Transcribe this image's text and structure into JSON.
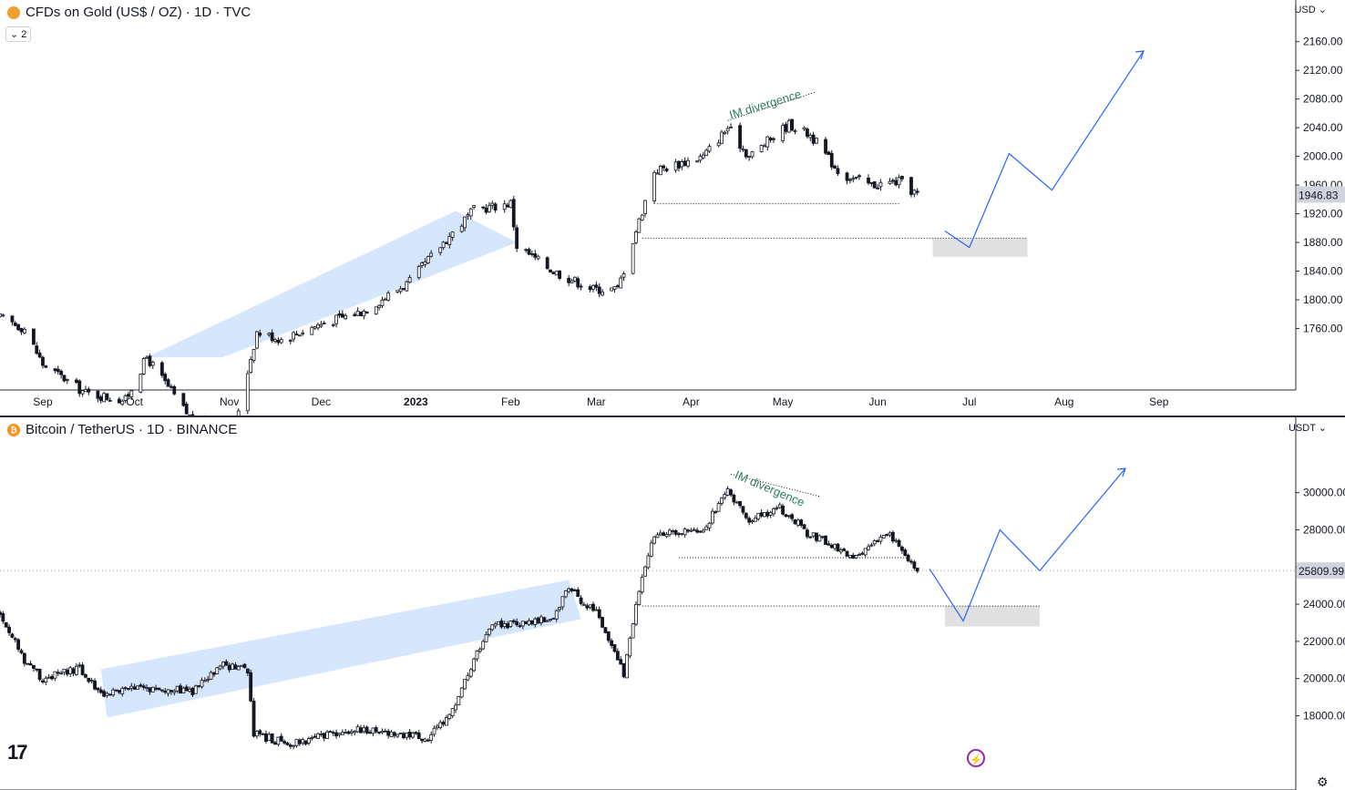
{
  "top_panel": {
    "title": "CFDs on Gold (US$ / OZ) · 1D · TVC",
    "collapse_label": "⌄ 2",
    "currency": "USD",
    "annotation": "IM divergence"
  },
  "bottom_panel": {
    "title": "Bitcoin / TetherUS · 1D · BINANCE",
    "currency": "USDT",
    "annotation": "IM divergence"
  },
  "colors": {
    "candle": "#131722",
    "channel": "#cfe2fb",
    "projection": "#2962ff",
    "annotation": "#2e7d62",
    "zone": "#e0e0e0"
  },
  "chart_data": [
    {
      "type": "candlestick",
      "title": "CFDs on Gold (US$ / OZ) · 1D · TVC",
      "x_ticks": [
        "Sep",
        "Oct",
        "Nov",
        "Dec",
        "2023",
        "Feb",
        "Mar",
        "Apr",
        "May",
        "Jun",
        "Jul",
        "Aug",
        "Sep"
      ],
      "y_ticks": [
        "2160.00",
        "2120.00",
        "2080.00",
        "2040.00",
        "2000.00",
        "1960.00",
        "1920.00",
        "1880.00",
        "1840.00",
        "1800.00",
        "1760.00"
      ],
      "ylim": [
        1720,
        2180
      ],
      "last_price": "1946.83",
      "support_levels": [
        1934,
        1886
      ],
      "target_zone": [
        1860,
        1886
      ],
      "projection_path": [
        1896,
        1873,
        2004,
        1953,
        2147
      ],
      "close_points": [
        [
          "2022-08-18",
          1775
        ],
        [
          "2022-08-26",
          1760
        ],
        [
          "2022-09-01",
          1710
        ],
        [
          "2022-09-15",
          1670
        ],
        [
          "2022-09-28",
          1660
        ],
        [
          "2022-10-05",
          1720
        ],
        [
          "2022-10-20",
          1630
        ],
        [
          "2022-11-03",
          1630
        ],
        [
          "2022-11-10",
          1755
        ],
        [
          "2022-11-18",
          1745
        ],
        [
          "2022-11-30",
          1765
        ],
        [
          "2022-12-15",
          1785
        ],
        [
          "2022-12-30",
          1825
        ],
        [
          "2023-01-10",
          1880
        ],
        [
          "2023-01-20",
          1925
        ],
        [
          "2023-02-01",
          1935
        ],
        [
          "2023-02-03",
          1875
        ],
        [
          "2023-02-15",
          1840
        ],
        [
          "2023-02-28",
          1815
        ],
        [
          "2023-03-08",
          1815
        ],
        [
          "2023-03-15",
          1910
        ],
        [
          "2023-03-20",
          1980
        ],
        [
          "2023-04-05",
          2000
        ],
        [
          "2023-04-13",
          2040
        ],
        [
          "2023-04-20",
          2000
        ],
        [
          "2023-05-03",
          2045
        ],
        [
          "2023-05-10",
          2030
        ],
        [
          "2023-05-20",
          1975
        ],
        [
          "2023-05-30",
          1960
        ],
        [
          "2023-06-08",
          1965
        ],
        [
          "2023-06-14",
          1947
        ]
      ]
    },
    {
      "type": "candlestick",
      "title": "Bitcoin / TetherUS · 1D · BINANCE",
      "x_ticks": [
        "Sep",
        "Oct",
        "Nov",
        "Dec",
        "2023",
        "Feb",
        "Mar",
        "Apr",
        "May",
        "Jun",
        "Jul",
        "Aug",
        "Sep"
      ],
      "y_ticks": [
        "30000.00",
        "28000.00",
        "26000.00",
        "24000.00",
        "22000.00",
        "20000.00",
        "18000.00"
      ],
      "ylim": [
        16800,
        31600
      ],
      "last_price": "25809.99",
      "support_levels": [
        26500,
        23900
      ],
      "target_zone": [
        22800,
        23900
      ],
      "projection_path": [
        25900,
        23100,
        28000,
        25800,
        31300
      ],
      "close_points": [
        [
          "2022-08-18",
          23500
        ],
        [
          "2022-08-26",
          21000
        ],
        [
          "2022-09-01",
          20000
        ],
        [
          "2022-09-13",
          20500
        ],
        [
          "2022-09-20",
          19200
        ],
        [
          "2022-10-05",
          19500
        ],
        [
          "2022-10-20",
          19300
        ],
        [
          "2022-10-30",
          20700
        ],
        [
          "2022-11-07",
          20500
        ],
        [
          "2022-11-09",
          17000
        ],
        [
          "2022-11-20",
          16500
        ],
        [
          "2022-12-15",
          17300
        ],
        [
          "2023-01-05",
          16800
        ],
        [
          "2023-01-13",
          18200
        ],
        [
          "2023-01-20",
          21000
        ],
        [
          "2023-01-25",
          22800
        ],
        [
          "2023-02-05",
          23000
        ],
        [
          "2023-02-15",
          23300
        ],
        [
          "2023-02-20",
          24800
        ],
        [
          "2023-03-01",
          23500
        ],
        [
          "2023-03-10",
          20300
        ],
        [
          "2023-03-14",
          24000
        ],
        [
          "2023-03-20",
          27800
        ],
        [
          "2023-04-05",
          28000
        ],
        [
          "2023-04-13",
          30200
        ],
        [
          "2023-04-20",
          28500
        ],
        [
          "2023-04-30",
          29200
        ],
        [
          "2023-05-10",
          27700
        ],
        [
          "2023-05-25",
          26500
        ],
        [
          "2023-06-05",
          27800
        ],
        [
          "2023-06-14",
          25810
        ]
      ]
    }
  ]
}
